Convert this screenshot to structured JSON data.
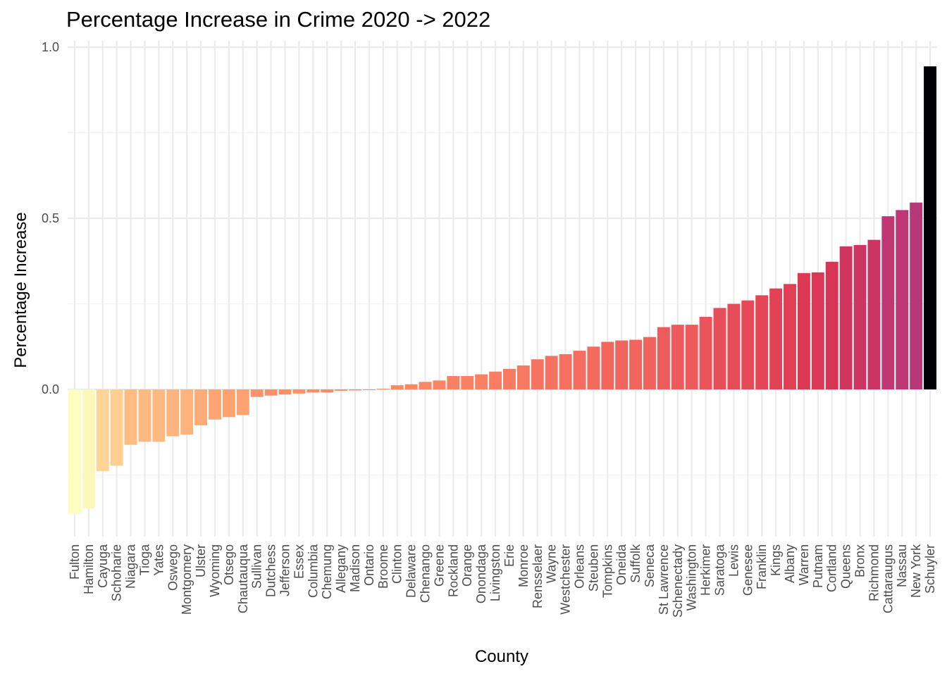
{
  "chart_data": {
    "type": "bar",
    "title": "Percentage Increase in Crime 2020 -> 2022",
    "xlabel": "County",
    "ylabel": "Percentage Increase",
    "ylim": [
      -0.38,
      1.0
    ],
    "y_ticks": [
      0.0,
      0.5,
      1.0
    ],
    "y_tick_labels": [
      "0.0",
      "0.5",
      "1.0"
    ],
    "grid": true,
    "legend": "none",
    "color_scale": "magma-reversed",
    "categories": [
      "Fulton",
      "Hamilton",
      "Cayuga",
      "Schoharie",
      "Niagara",
      "Tioga",
      "Yates",
      "Oswego",
      "Montgomery",
      "Ulster",
      "Wyoming",
      "Otsego",
      "Chautauqua",
      "Sullivan",
      "Dutchess",
      "Jefferson",
      "Essex",
      "Columbia",
      "Chemung",
      "Allegany",
      "Madison",
      "Ontario",
      "Broome",
      "Clinton",
      "Delaware",
      "Chenango",
      "Greene",
      "Rockland",
      "Orange",
      "Onondaga",
      "Livingston",
      "Erie",
      "Monroe",
      "Rensselaer",
      "Wayne",
      "Westchester",
      "Orleans",
      "Steuben",
      "Tompkins",
      "Oneida",
      "Suffolk",
      "Seneca",
      "St Lawrence",
      "Schenectady",
      "Washington",
      "Herkimer",
      "Saratoga",
      "Lewis",
      "Genesee",
      "Franklin",
      "Kings",
      "Albany",
      "Warren",
      "Putnam",
      "Cortland",
      "Queens",
      "Bronx",
      "Richmond",
      "Cattaraugus",
      "Nassau",
      "New York",
      "Schuyler"
    ],
    "values": [
      -0.363,
      -0.348,
      -0.239,
      -0.223,
      -0.162,
      -0.153,
      -0.153,
      -0.137,
      -0.132,
      -0.105,
      -0.088,
      -0.081,
      -0.075,
      -0.022,
      -0.018,
      -0.015,
      -0.012,
      -0.009,
      -0.009,
      -0.004,
      -0.003,
      -0.002,
      0.002,
      0.012,
      0.015,
      0.022,
      0.026,
      0.039,
      0.039,
      0.044,
      0.052,
      0.06,
      0.07,
      0.088,
      0.098,
      0.103,
      0.113,
      0.125,
      0.139,
      0.143,
      0.145,
      0.153,
      0.182,
      0.189,
      0.189,
      0.212,
      0.238,
      0.25,
      0.26,
      0.275,
      0.295,
      0.308,
      0.34,
      0.342,
      0.373,
      0.418,
      0.422,
      0.437,
      0.506,
      0.524,
      0.546,
      0.944
    ]
  }
}
